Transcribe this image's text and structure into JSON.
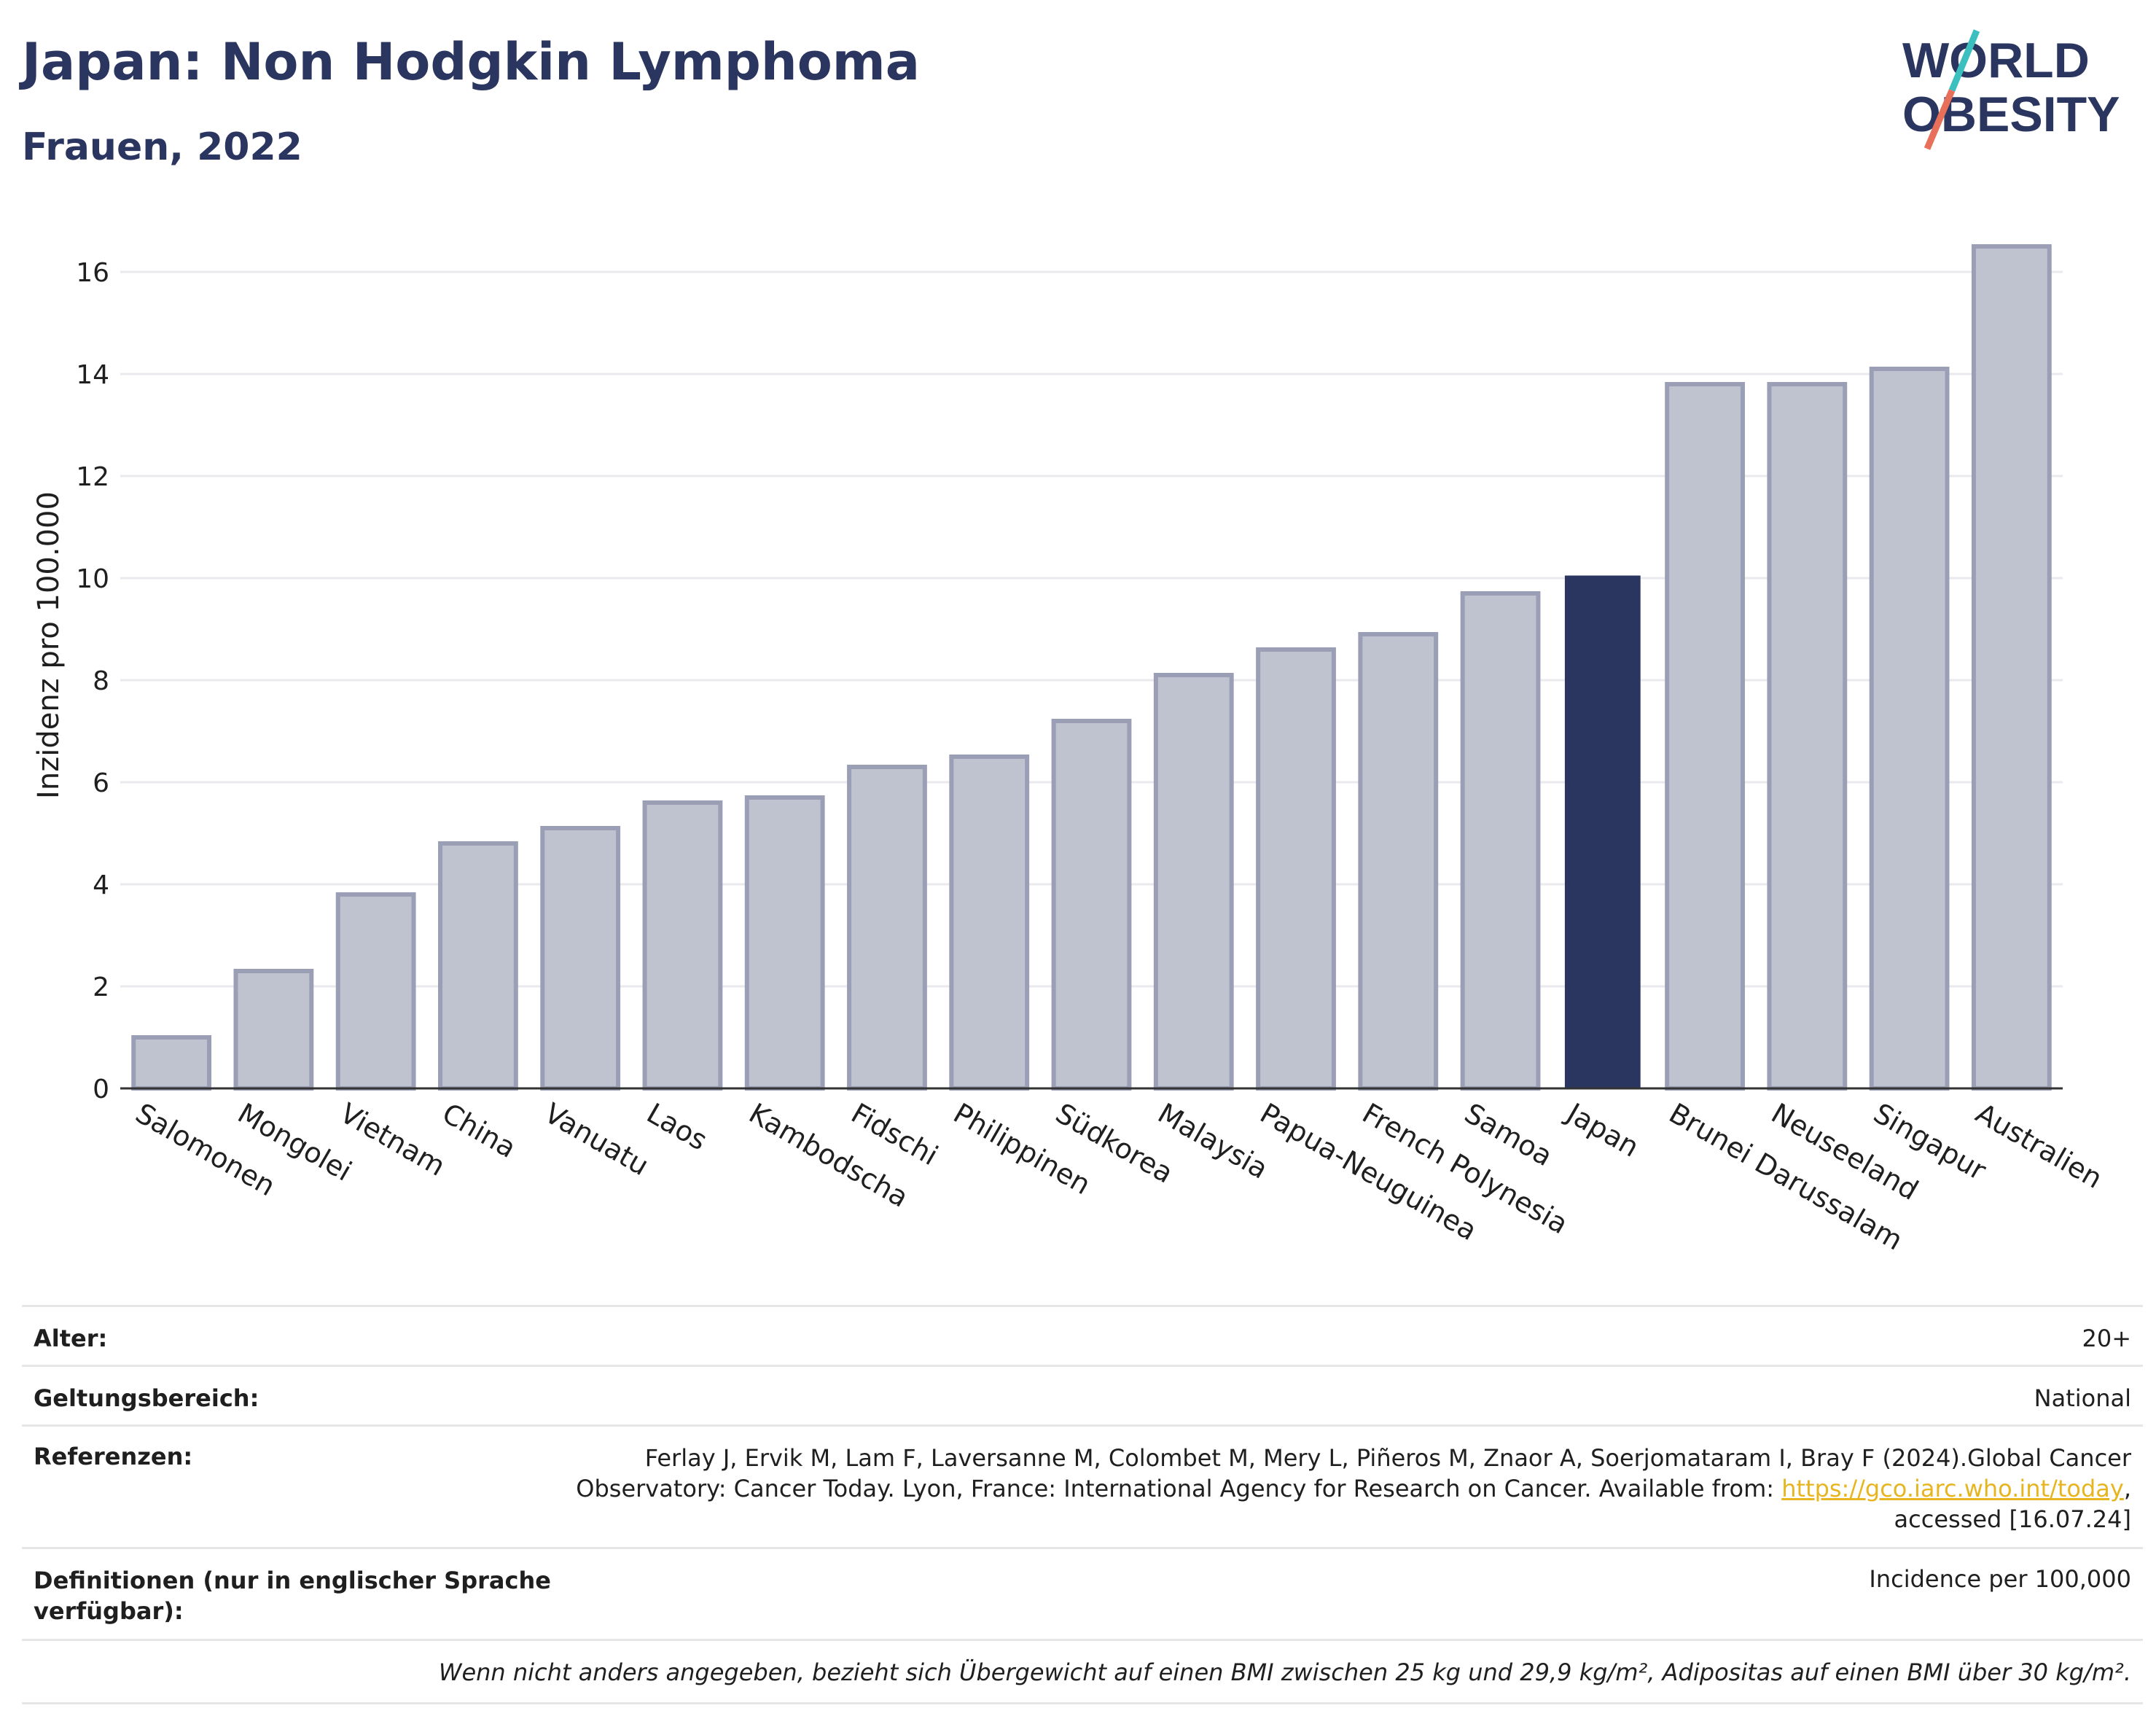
{
  "header": {
    "title": "Japan: Non Hodgkin Lymphoma",
    "subtitle": "Frauen, 2022",
    "logo_line1": "WORLD",
    "logo_line2": "OBESITY"
  },
  "colors": {
    "primary": "#2a3560",
    "bar_fill": "#bfc2cf",
    "bar_stroke": "#9a9fb6",
    "highlight": "#2a3560",
    "logo_teal": "#3bbfbf",
    "logo_coral": "#e8705a",
    "link": "#e6b520"
  },
  "chart_data": {
    "type": "bar",
    "categories": [
      "Salomonen",
      "Mongolei",
      "Vietnam",
      "China",
      "Vanuatu",
      "Laos",
      "Kambodscha",
      "Fidschi",
      "Philippinen",
      "Südkorea",
      "Malaysia",
      "Papua-Neuguinea",
      "French Polynesia",
      "Samoa",
      "Japan",
      "Brunei Darussalam",
      "Neuseeland",
      "Singapur",
      "Australien"
    ],
    "values": [
      1.0,
      2.3,
      3.8,
      4.8,
      5.1,
      5.6,
      5.7,
      6.3,
      6.5,
      7.2,
      8.1,
      8.6,
      8.9,
      9.7,
      10.05,
      13.8,
      13.8,
      14.1,
      16.5
    ],
    "highlight": "Japan",
    "ylabel": "Inzidenz pro 100.000",
    "xlabel": "",
    "ylim": [
      0,
      17
    ],
    "yticks": [
      0,
      2,
      4,
      6,
      8,
      10,
      12,
      14,
      16
    ],
    "grid": true
  },
  "info": {
    "age_label": "Alter:",
    "age_value": "20+",
    "scope_label": "Geltungsbereich:",
    "scope_value": "National",
    "ref_label": "Referenzen:",
    "ref_line1": "Ferlay J, Ervik M, Lam F, Laversanne M, Colombet M, Mery L, Piñeros M, Znaor A, Soerjomataram I, Bray F (2024).Global Cancer",
    "ref_line2_pre": "Observatory: Cancer Today. Lyon, France: International Agency for Research on Cancer. Available from: ",
    "ref_link": "https://gco.iarc.who.int/today",
    "ref_line2_post": ",",
    "ref_line3": "accessed [16.07.24]",
    "def_label_line1": "Definitionen (nur in englischer Sprache",
    "def_label_line2": "verfügbar):",
    "def_value": "Incidence per 100,000",
    "note": "Wenn nicht anders angegeben, bezieht sich Übergewicht auf einen BMI zwischen 25 kg und 29,9 kg/m², Adipositas auf einen BMI über 30 kg/m²."
  }
}
